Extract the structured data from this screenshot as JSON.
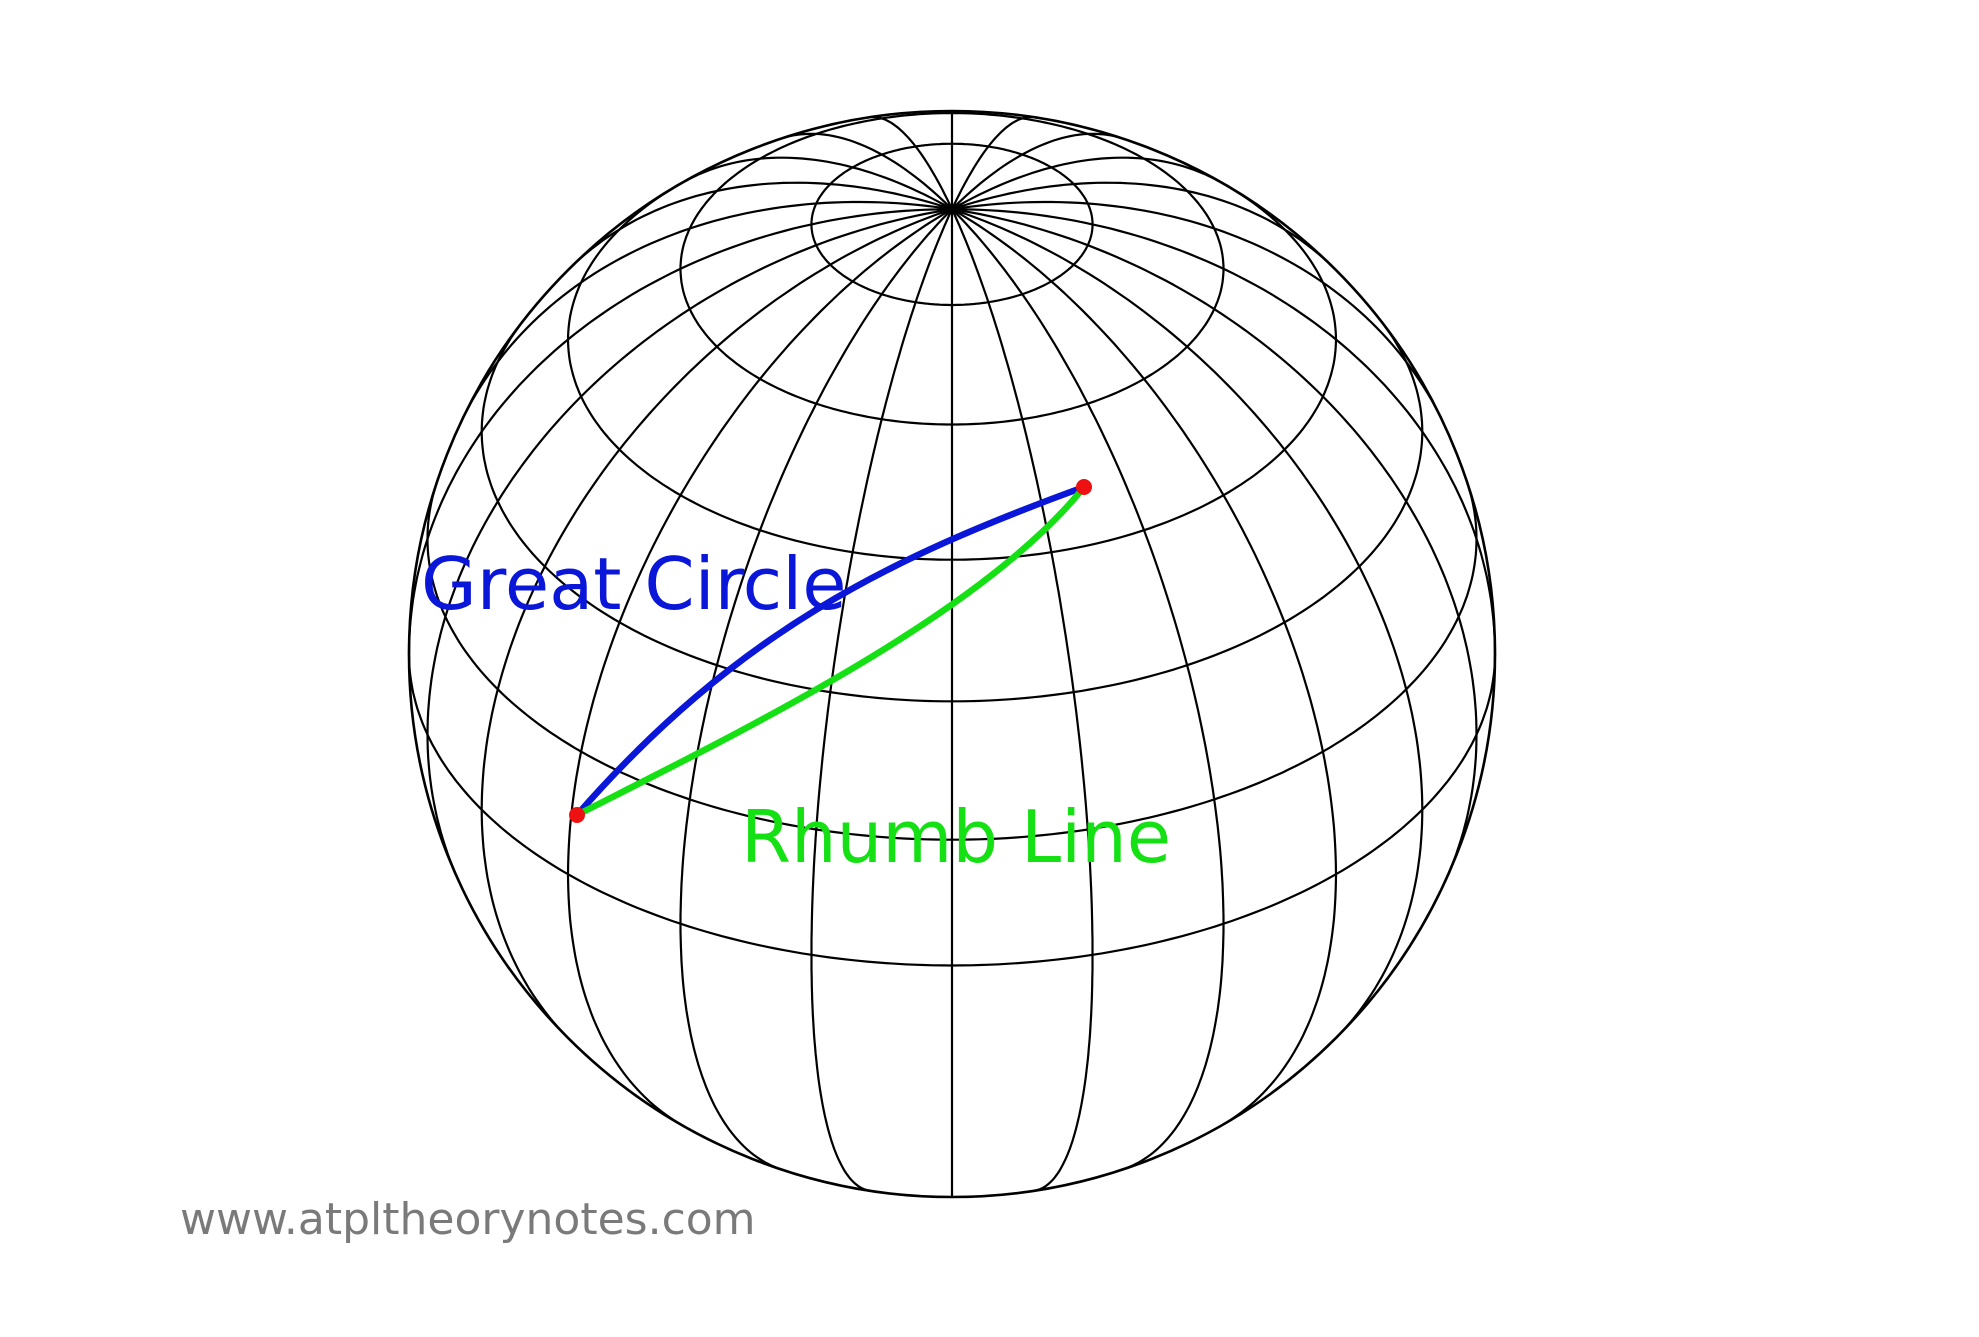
{
  "labels": {
    "great_circle": "Great Circle",
    "rhumb_line": "Rhumb Line",
    "website": "www.atpltheorynotes.com"
  },
  "colors": {
    "background": "#ffffff",
    "grid": "#000000",
    "great_circle": "#0a16d8",
    "rhumb_line": "#14e014",
    "points": "#ee1111",
    "website_text": "#7a7a7a"
  },
  "globe": {
    "meridian_count": 24,
    "latitude_circles_deg": [
      75,
      60,
      45,
      30,
      15,
      0
    ]
  }
}
